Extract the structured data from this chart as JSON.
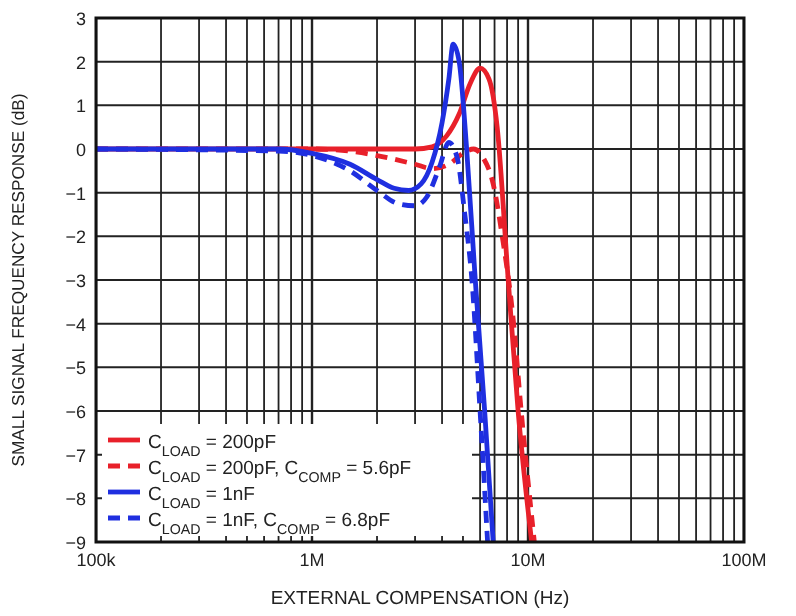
{
  "chart_data": {
    "type": "line",
    "xlabel": "EXTERNAL COMPENSATION (Hz)",
    "ylabel": "SMALL SIGNAL FREQUENCY RESPONSE (dB)",
    "log": "x",
    "xlim": [
      100000,
      100000000
    ],
    "ylim": [
      -9,
      3
    ],
    "xticks": [
      {
        "value": 100000,
        "label": "100k"
      },
      {
        "value": 200000,
        "label": null
      },
      {
        "value": 300000,
        "label": null
      },
      {
        "value": 400000,
        "label": null
      },
      {
        "value": 500000,
        "label": null
      },
      {
        "value": 600000,
        "label": null
      },
      {
        "value": 700000,
        "label": null
      },
      {
        "value": 800000,
        "label": null
      },
      {
        "value": 900000,
        "label": null
      },
      {
        "value": 1000000,
        "label": "1M"
      },
      {
        "value": 2000000,
        "label": null
      },
      {
        "value": 3000000,
        "label": null
      },
      {
        "value": 4000000,
        "label": null
      },
      {
        "value": 5000000,
        "label": null
      },
      {
        "value": 6000000,
        "label": null
      },
      {
        "value": 7000000,
        "label": null
      },
      {
        "value": 8000000,
        "label": null
      },
      {
        "value": 9000000,
        "label": null
      },
      {
        "value": 10000000,
        "label": "10M"
      },
      {
        "value": 20000000,
        "label": null
      },
      {
        "value": 30000000,
        "label": null
      },
      {
        "value": 40000000,
        "label": null
      },
      {
        "value": 50000000,
        "label": null
      },
      {
        "value": 60000000,
        "label": null
      },
      {
        "value": 70000000,
        "label": null
      },
      {
        "value": 80000000,
        "label": null
      },
      {
        "value": 90000000,
        "label": null
      },
      {
        "value": 100000000,
        "label": "100M"
      }
    ],
    "yticks": [
      -9,
      -8,
      -7,
      -6,
      -5,
      -4,
      -3,
      -2,
      -1,
      0,
      1,
      2,
      3
    ],
    "grid": true,
    "legend": "bottom left",
    "series": [
      {
        "name": "C$_{LOAD}$ = 200pF",
        "color": "#e8202a",
        "line_style": "solid",
        "x": [
          100000,
          1000000,
          2000000,
          3000000,
          3600000,
          4200000,
          4800000,
          5400000,
          6000000,
          6600000,
          7200000,
          8100000,
          9000000,
          10400000
        ],
        "values": [
          0,
          0,
          0,
          0,
          0.05,
          0.3,
          0.8,
          1.5,
          1.85,
          1.6,
          0.5,
          -3,
          -6,
          -9
        ]
      },
      {
        "name": "C$_{LOAD}$ = 200pF, C$_{COMP}$ = 5.6pF",
        "color": "#e8202a",
        "line_style": "dashed",
        "x": [
          100000,
          1000000,
          1500000,
          2000000,
          3000000,
          3600000,
          4300000,
          5000000,
          5600000,
          6200000,
          6900000,
          7600000,
          8500000,
          9300000,
          10700000
        ],
        "values": [
          0,
          0,
          -0.05,
          -0.15,
          -0.35,
          -0.45,
          -0.35,
          -0.1,
          0,
          -0.2,
          -0.8,
          -2,
          -3.8,
          -6,
          -9
        ]
      },
      {
        "name": "C$_{LOAD}$ = 1nF",
        "color": "#1f2fe0",
        "line_style": "solid",
        "x": [
          100000,
          700000,
          1000000,
          1500000,
          2000000,
          2400000,
          2800000,
          3200000,
          3600000,
          4000000,
          4300000,
          4500000,
          4800000,
          5200000,
          5700000,
          6300000,
          6900000
        ],
        "values": [
          0,
          0,
          -0.1,
          -0.35,
          -0.7,
          -0.9,
          -0.95,
          -0.8,
          -0.3,
          0.6,
          1.6,
          2.4,
          2,
          0,
          -3,
          -6,
          -9
        ]
      },
      {
        "name": "C$_{LOAD}$ = 1nF, C$_{COMP}$ = 6.8pF",
        "color": "#1f2fe0",
        "line_style": "dashed",
        "x": [
          100000,
          700000,
          1000000,
          1500000,
          2000000,
          2500000,
          3000000,
          3400000,
          3900000,
          4300000,
          4700000,
          5100000,
          5500000,
          6000000,
          6500000
        ],
        "values": [
          0,
          -0.05,
          -0.15,
          -0.5,
          -0.95,
          -1.25,
          -1.3,
          -1.1,
          -0.4,
          0.15,
          -0.2,
          -1.5,
          -3,
          -6,
          -9
        ]
      }
    ]
  }
}
